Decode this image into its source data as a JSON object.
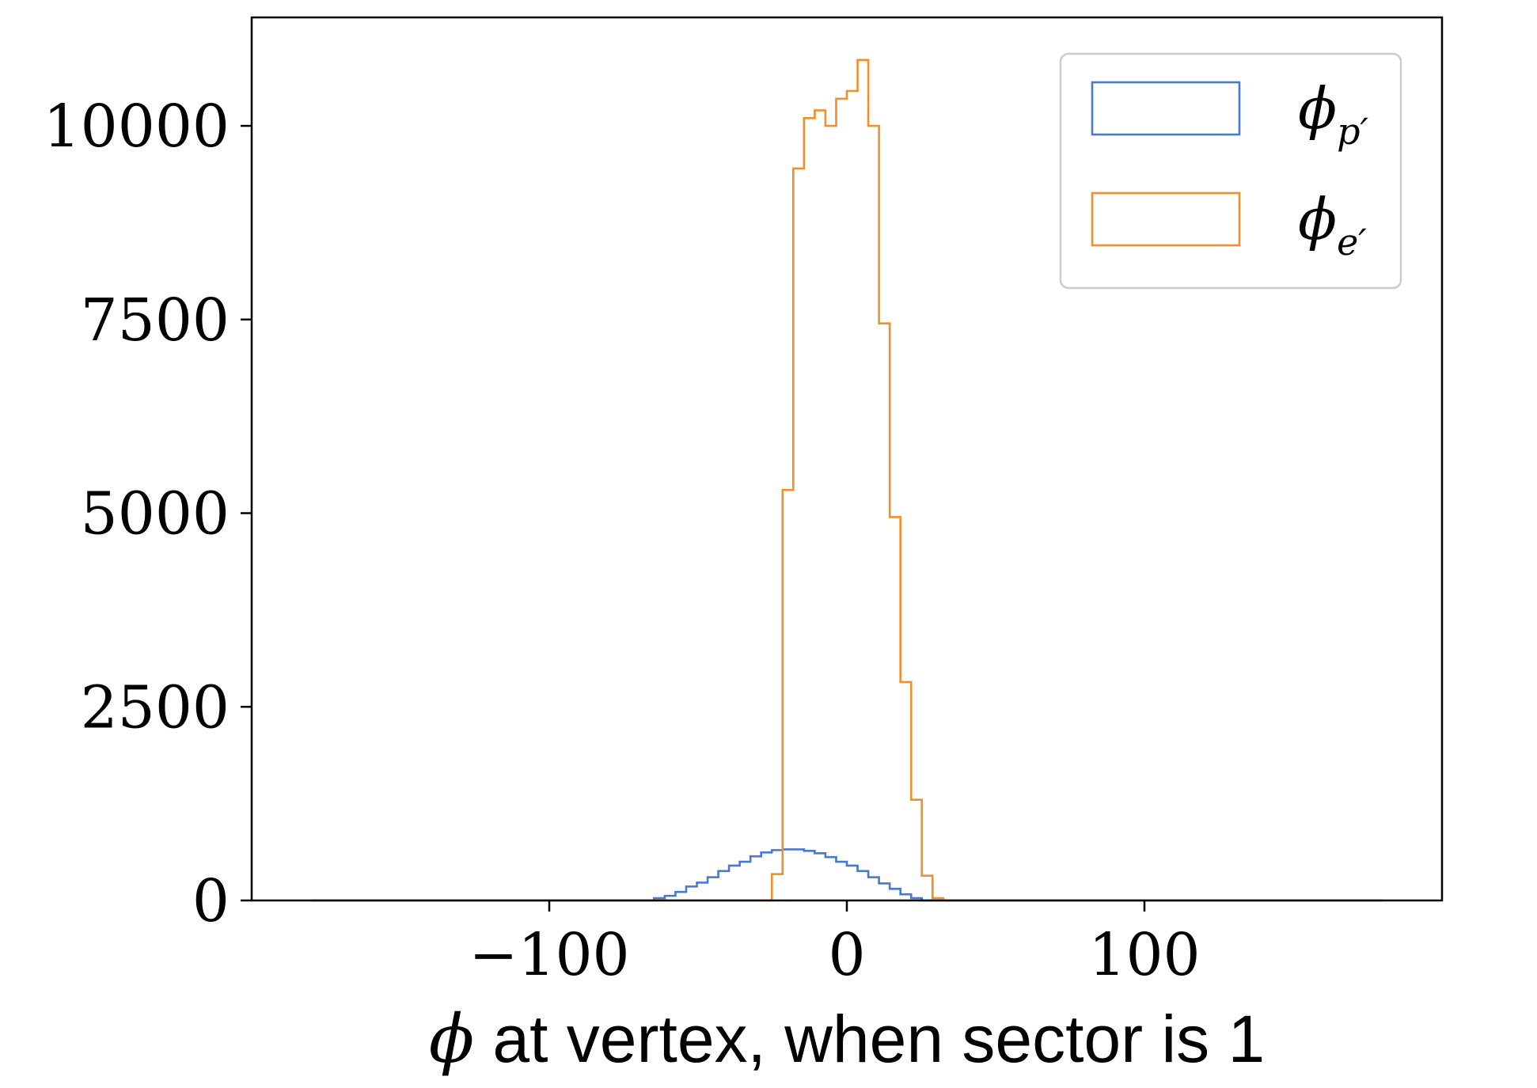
{
  "chart_data": {
    "type": "histogram",
    "title": "",
    "xlabel": {
      "symbol": "ϕ",
      "text": " at vertex, when sector is 1"
    },
    "ylabel": "",
    "xlim": [
      -200,
      200
    ],
    "ylim": [
      0,
      11400
    ],
    "xticks": [
      {
        "value": -100,
        "label": "−100"
      },
      {
        "value": 0,
        "label": "0"
      },
      {
        "value": 100,
        "label": "100"
      }
    ],
    "yticks": [
      {
        "value": 0,
        "label": "0"
      },
      {
        "value": 2500,
        "label": "2500"
      },
      {
        "value": 5000,
        "label": "5000"
      },
      {
        "value": 7500,
        "label": "7500"
      },
      {
        "value": 10000,
        "label": "10000"
      }
    ],
    "grid": false,
    "legend": {
      "placement": "top-right"
    },
    "bin_edges_note": "bins of width 3.6 from -180 to 180",
    "series": [
      {
        "name": "ϕp′",
        "legend_main": "ϕ",
        "legend_sub": "p′",
        "color": "#4878cf",
        "bin_start": -180,
        "bin_width": 3.6,
        "counts": [
          0,
          0,
          0,
          0,
          0,
          0,
          0,
          0,
          0,
          0,
          0,
          0,
          0,
          0,
          0,
          0,
          0,
          0,
          0,
          0,
          0,
          0,
          0,
          0,
          0,
          0,
          0,
          0,
          0,
          0,
          0,
          0,
          30,
          60,
          110,
          180,
          230,
          300,
          380,
          450,
          500,
          570,
          620,
          650,
          660,
          660,
          640,
          610,
          560,
          500,
          450,
          380,
          300,
          220,
          150,
          80,
          30,
          0,
          0,
          0,
          0,
          0,
          0,
          0,
          0,
          0,
          0,
          0,
          0,
          0,
          0,
          0,
          0,
          0,
          0,
          0,
          0,
          0,
          0,
          0,
          0,
          0,
          0,
          0,
          0,
          0,
          0,
          0,
          0,
          0,
          0,
          0,
          0,
          0,
          0,
          0,
          0,
          0,
          0,
          0
        ]
      },
      {
        "name": "ϕe′",
        "legend_main": "ϕ",
        "legend_sub": "e′",
        "color": "#f28e2b",
        "bin_start": -180,
        "bin_width": 3.6,
        "counts": [
          0,
          0,
          0,
          0,
          0,
          0,
          0,
          0,
          0,
          0,
          0,
          0,
          0,
          0,
          0,
          0,
          0,
          0,
          0,
          0,
          0,
          0,
          0,
          0,
          0,
          0,
          0,
          0,
          0,
          0,
          0,
          0,
          0,
          0,
          0,
          0,
          0,
          0,
          0,
          0,
          0,
          0,
          0,
          340,
          5300,
          9450,
          10100,
          10200,
          10000,
          10350,
          10450,
          10850,
          10000,
          7450,
          4950,
          2820,
          1300,
          320,
          30,
          0,
          0,
          0,
          0,
          0,
          0,
          0,
          0,
          0,
          0,
          0,
          0,
          0,
          0,
          0,
          0,
          0,
          0,
          0,
          0,
          0,
          0,
          0,
          0,
          0,
          0,
          0,
          0,
          0,
          0,
          0,
          0,
          0,
          0,
          0,
          0,
          0,
          0,
          0,
          0,
          0
        ]
      }
    ]
  }
}
